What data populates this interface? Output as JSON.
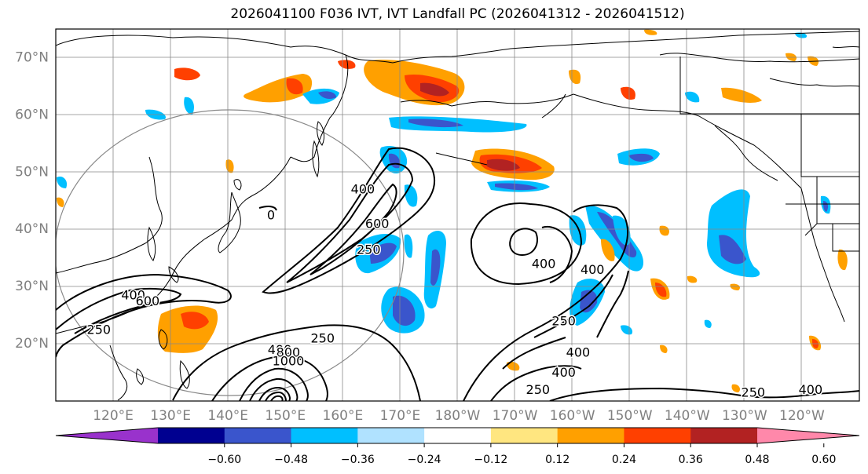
{
  "title": "2026041100 F036 IVT, IVT Landfall PC (2026041312 - 2026041512)",
  "map": {
    "lon_range": [
      110,
      250
    ],
    "lat_range": [
      10,
      75
    ],
    "lat_ticks": [
      {
        "value": 20,
        "label": "20°N"
      },
      {
        "value": 30,
        "label": "30°N"
      },
      {
        "value": 40,
        "label": "40°N"
      },
      {
        "value": 50,
        "label": "50°N"
      },
      {
        "value": 60,
        "label": "60°N"
      },
      {
        "value": 70,
        "label": "70°N"
      }
    ],
    "lon_ticks": [
      {
        "value": 120,
        "label": "120°E"
      },
      {
        "value": 130,
        "label": "130°E"
      },
      {
        "value": 140,
        "label": "140°E"
      },
      {
        "value": 150,
        "label": "150°E"
      },
      {
        "value": 160,
        "label": "160°E"
      },
      {
        "value": 170,
        "label": "170°E"
      },
      {
        "value": 180,
        "label": "180°W"
      },
      {
        "value": 190,
        "label": "170°W"
      },
      {
        "value": 200,
        "label": "160°W"
      },
      {
        "value": 210,
        "label": "150°W"
      },
      {
        "value": 220,
        "label": "140°W"
      },
      {
        "value": 230,
        "label": "130°W"
      },
      {
        "value": 240,
        "label": "120°W"
      }
    ],
    "ivt_contour_labels": [
      {
        "text": "400",
        "lon": 123.5,
        "lat": 28.5
      },
      {
        "text": "250",
        "lon": 117.5,
        "lat": 22.5
      },
      {
        "text": "600",
        "lon": 126,
        "lat": 27.5
      },
      {
        "text": "250",
        "lon": 156.5,
        "lat": 21
      },
      {
        "text": "400",
        "lon": 149,
        "lat": 19
      },
      {
        "text": "800",
        "lon": 150.5,
        "lat": 18.5
      },
      {
        "text": "1000",
        "lon": 150.5,
        "lat": 17
      },
      {
        "text": "400",
        "lon": 163.5,
        "lat": 47
      },
      {
        "text": "600",
        "lon": 166,
        "lat": 41
      },
      {
        "text": "250",
        "lon": 164.5,
        "lat": 36.5
      },
      {
        "text": "400",
        "lon": 195,
        "lat": 34
      },
      {
        "text": "400",
        "lon": 203.5,
        "lat": 33
      },
      {
        "text": "250",
        "lon": 198.5,
        "lat": 24
      },
      {
        "text": "400",
        "lon": 201,
        "lat": 18.5
      },
      {
        "text": "400",
        "lon": 198.5,
        "lat": 15
      },
      {
        "text": "250",
        "lon": 194,
        "lat": 12
      },
      {
        "text": "250",
        "lon": 231.5,
        "lat": 11.5
      },
      {
        "text": "400",
        "lon": 241.5,
        "lat": 12
      },
      {
        "text": "0",
        "lon": 147.5,
        "lat": 42.5
      }
    ]
  },
  "colorbar": {
    "ticks": [
      "−0.60",
      "−0.48",
      "−0.36",
      "−0.24",
      "−0.12",
      "0.12",
      "0.24",
      "0.36",
      "0.48",
      "0.60"
    ],
    "colors": [
      "#9932cc",
      "#000090",
      "#3a55cc",
      "#00bfff",
      "#b0e2ff",
      "#ffffff",
      "#ffe680",
      "#ffa000",
      "#ff4000",
      "#b22222",
      "#ff88aa"
    ],
    "range": [
      -0.72,
      0.72
    ]
  }
}
